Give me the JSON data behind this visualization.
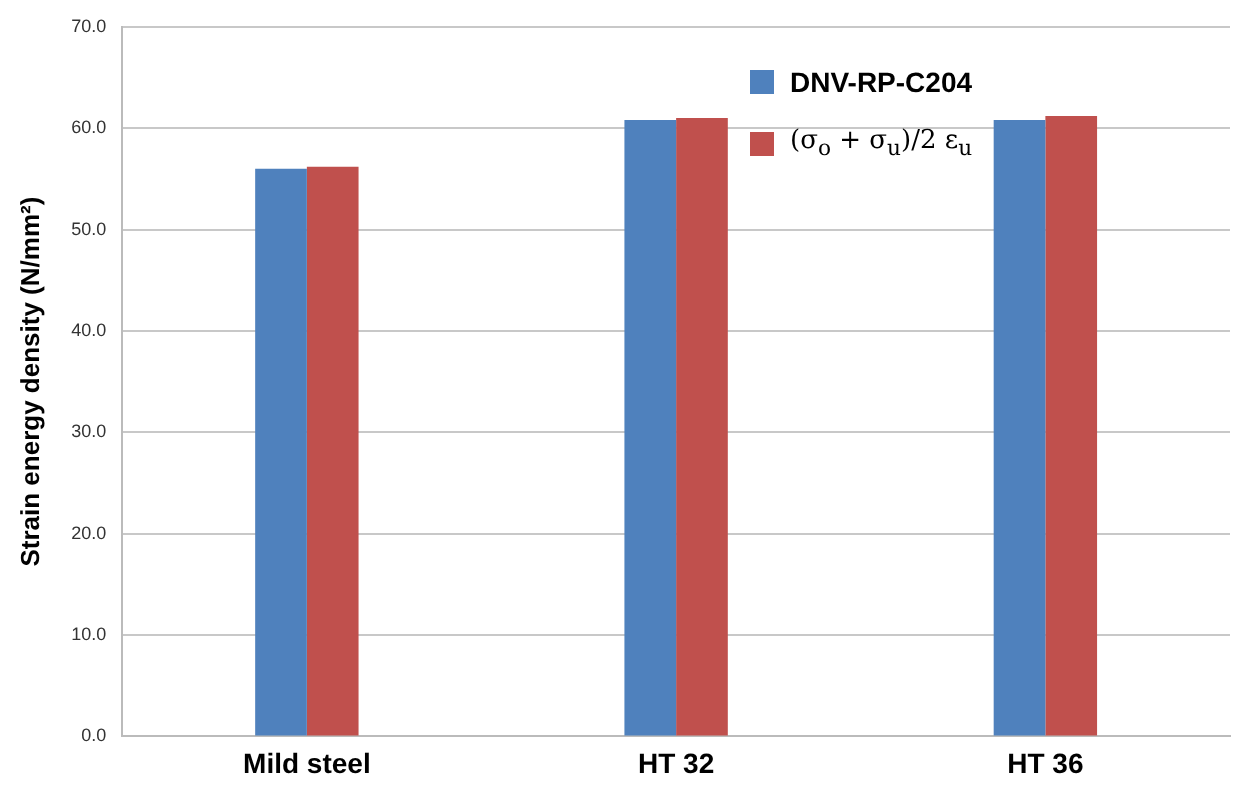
{
  "chart_data": {
    "type": "bar",
    "ylabel": "Strain energy density (N/mm²)",
    "categories": [
      "Mild steel",
      "HT 32",
      "HT 36"
    ],
    "series": [
      {
        "name": "DNV-RP-C204",
        "color": "#4f81bd",
        "values": [
          56.0,
          60.8,
          60.8
        ]
      },
      {
        "name": "(σ$_{o}$ + σ$_{u}$)/2 ε$_{u}$",
        "color": "#c0504d",
        "values": [
          56.2,
          61.0,
          61.2
        ]
      }
    ],
    "ylim": [
      0,
      70
    ],
    "yticks": [
      {
        "value": 0,
        "label": "0.0"
      },
      {
        "value": 10,
        "label": "10.0"
      },
      {
        "value": 20,
        "label": "20.0"
      },
      {
        "value": 30,
        "label": "30.0"
      },
      {
        "value": 40,
        "label": "40.0"
      },
      {
        "value": 50,
        "label": "50.0"
      },
      {
        "value": 60,
        "label": "60.0"
      },
      {
        "value": 70,
        "label": "70.0"
      }
    ],
    "grid": "y",
    "legend": "top right"
  }
}
